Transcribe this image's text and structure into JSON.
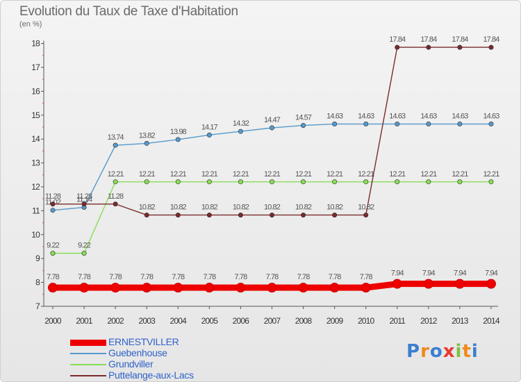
{
  "chart_data": {
    "type": "line",
    "title": "Evolution du Taux de Taxe d'Habitation",
    "ylabel": "(en %)",
    "x": [
      "2000",
      "2001",
      "2002",
      "2003",
      "2004",
      "2005",
      "2006",
      "2007",
      "2008",
      "2009",
      "2010",
      "2011",
      "2012",
      "2013",
      "2014"
    ],
    "ylim": [
      7,
      18
    ],
    "yticks": [
      "7",
      "8",
      "9",
      "10",
      "11",
      "12",
      "13",
      "14",
      "15",
      "16",
      "17",
      "18"
    ],
    "grid": false,
    "legend_position": "bottom-left",
    "series": [
      {
        "name": "ERNESTVILLER",
        "color": "#ee0000",
        "values": [
          7.78,
          7.78,
          7.78,
          7.78,
          7.78,
          7.78,
          7.78,
          7.78,
          7.78,
          7.78,
          7.78,
          7.94,
          7.94,
          7.94,
          7.94
        ],
        "labels": [
          "7.78",
          "7.78",
          "7.78",
          "7.78",
          "7.78",
          "7.78",
          "7.78",
          "7.78",
          "7.78",
          "7.78",
          "7.78",
          "7.94",
          "7.94",
          "7.94",
          "7.94"
        ]
      },
      {
        "name": "Guebenhouse",
        "color": "#5599cc",
        "values": [
          11.02,
          11.14,
          13.74,
          13.82,
          13.98,
          14.17,
          14.32,
          14.47,
          14.57,
          14.63,
          14.63,
          14.63,
          14.63,
          14.63,
          14.63
        ],
        "labels": [
          "11.02",
          "11.14",
          "13.74",
          "13.82",
          "13.98",
          "14.17",
          "14.32",
          "14.47",
          "14.57",
          "14.63",
          "14.63",
          "14.63",
          "14.63",
          "14.63",
          "14.63"
        ]
      },
      {
        "name": "Grundviller",
        "color": "#88dd55",
        "values": [
          9.22,
          9.22,
          12.21,
          12.21,
          12.21,
          12.21,
          12.21,
          12.21,
          12.21,
          12.21,
          12.21,
          12.21,
          12.21,
          12.21,
          12.21
        ],
        "labels": [
          "9.22",
          "9.22",
          "12.21",
          "12.21",
          "12.21",
          "12.21",
          "12.21",
          "12.21",
          "12.21",
          "12.21",
          "12.21",
          "12.21",
          "12.21",
          "12.21",
          "12.21"
        ]
      },
      {
        "name": "Puttelange-aux-Lacs",
        "color": "#7a2a2a",
        "values": [
          11.28,
          11.28,
          11.28,
          10.82,
          10.82,
          10.82,
          10.82,
          10.82,
          10.82,
          10.82,
          10.82,
          17.84,
          17.84,
          17.84,
          17.84
        ],
        "labels": [
          "11.28",
          "11.28",
          "11.28",
          "10.82",
          "10.82",
          "10.82",
          "10.82",
          "10.82",
          "10.82",
          "10.82",
          "10.82",
          "17.84",
          "17.84",
          "17.84",
          "17.84"
        ]
      }
    ]
  },
  "logo": {
    "letters": [
      "P",
      "r",
      "o",
      "x",
      "i",
      "t",
      "i"
    ],
    "colors": [
      "#3b7fd1",
      "#f08a1c",
      "#3b7fd1",
      "#e83a2e",
      "#7bc142",
      "#f08a1c",
      "#3b7fd1"
    ]
  }
}
